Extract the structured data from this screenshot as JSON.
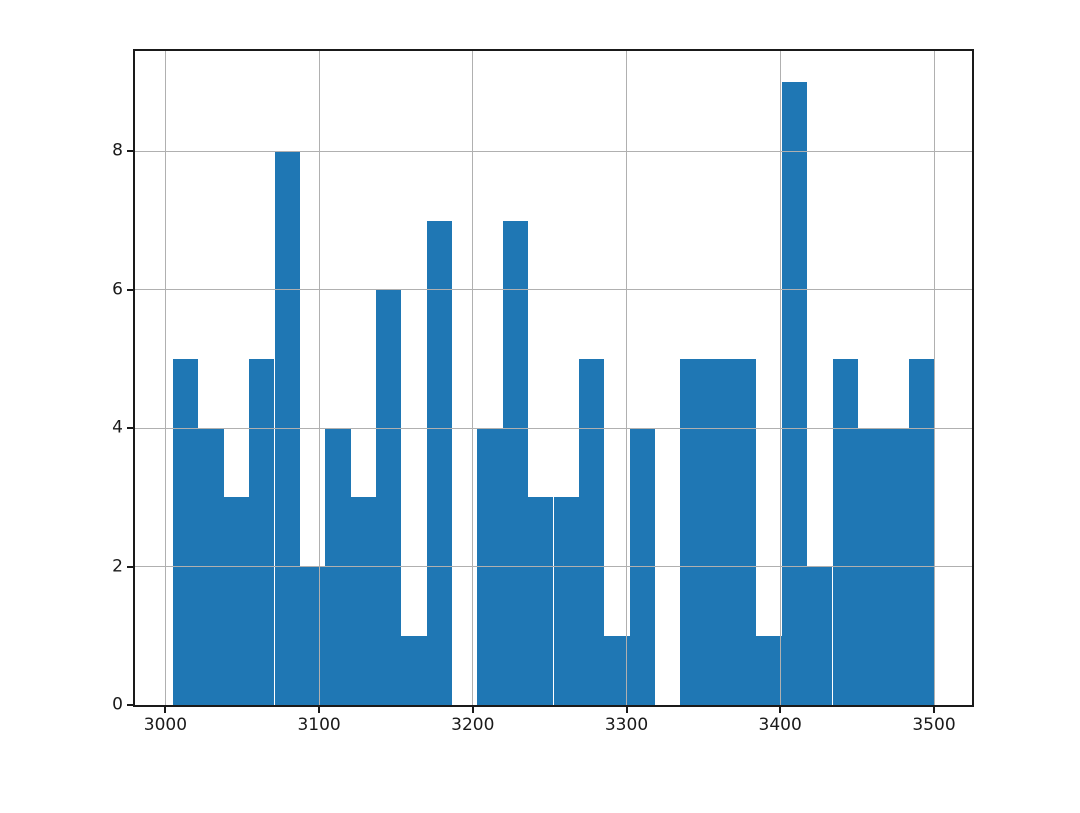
{
  "chart_data": {
    "type": "bar",
    "subtype": "histogram",
    "title": "",
    "xlabel": "",
    "ylabel": "",
    "grid": true,
    "legend": false,
    "background_color": "#ffffff",
    "bar_color": "#1f77b4",
    "grid_color": "#b0b0b0",
    "axis_color": "#1a1a1a",
    "xlim": [
      2980.25,
      3524.75
    ],
    "ylim": [
      0,
      9.45
    ],
    "x_ticks": [
      3000,
      3100,
      3200,
      3300,
      3400,
      3500
    ],
    "y_ticks": [
      0,
      2,
      4,
      6,
      8
    ],
    "bin_edges": [
      3005,
      3021.5,
      3038,
      3054.5,
      3071,
      3087.5,
      3104,
      3120.5,
      3137,
      3153.5,
      3170,
      3186.5,
      3203,
      3219.5,
      3236,
      3252.5,
      3269,
      3285.5,
      3302,
      3318.5,
      3335,
      3351.5,
      3368,
      3384.5,
      3401,
      3417.5,
      3434,
      3450.5,
      3467,
      3483.5,
      3500
    ],
    "counts": [
      5,
      4,
      3,
      5,
      8,
      2,
      4,
      3,
      6,
      1,
      7,
      0,
      4,
      7,
      3,
      3,
      5,
      1,
      4,
      0,
      5,
      5,
      5,
      1,
      9,
      2,
      5,
      4,
      4,
      5
    ]
  }
}
